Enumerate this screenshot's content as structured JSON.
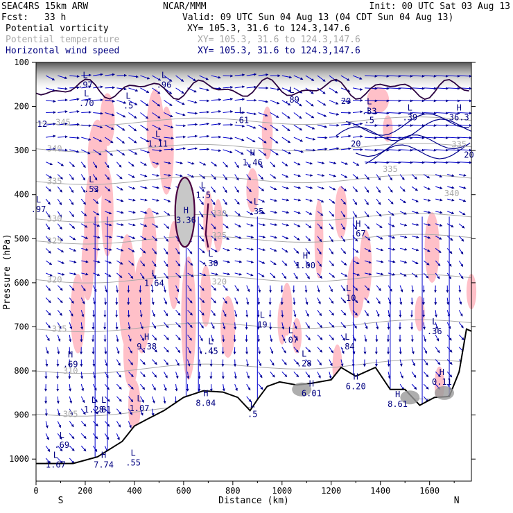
{
  "header": {
    "model": "SEAC4RS 15km ARW",
    "center": "NCAR/MMM",
    "init": "Init: 00 UTC Sat 03 Aug 13",
    "fcst_label": "Fcst:",
    "fcst_value": "33 h",
    "valid": "Valid: 09 UTC Sun 04 Aug 13 (04 CDT Sun 04 Aug 13)"
  },
  "fields": [
    {
      "name": "Potential vorticity",
      "xy": "XY= 105.3, 31.6 to 124.3,147.6",
      "color": "#000000"
    },
    {
      "name": "Potential temperature",
      "xy": "XY= 105.3, 31.6 to 124.3,147.6",
      "color": "#a8a8a8"
    },
    {
      "name": "Horizontal wind speed",
      "xy": "XY= 105.3, 31.6 to 124.3,147.6",
      "color": "#000080"
    }
  ],
  "chart_data": {
    "type": "cross-section",
    "xlabel": "Distance (km)",
    "ylabel": "Pressure (hPa)",
    "x_ticks": [
      0,
      200,
      400,
      600,
      800,
      1000,
      1200,
      1400,
      1600
    ],
    "y_ticks": [
      100,
      200,
      300,
      400,
      500,
      600,
      700,
      800,
      900,
      1000
    ],
    "xlim": [
      0,
      1770
    ],
    "ylim": [
      1050,
      100
    ],
    "endpoints": {
      "left": "S",
      "right": "N"
    },
    "terrain_surface": [
      [
        0,
        1010
      ],
      [
        150,
        1010
      ],
      [
        250,
        995
      ],
      [
        350,
        960
      ],
      [
        400,
        925
      ],
      [
        450,
        910
      ],
      [
        520,
        890
      ],
      [
        600,
        860
      ],
      [
        680,
        845
      ],
      [
        760,
        848
      ],
      [
        820,
        860
      ],
      [
        870,
        890
      ],
      [
        900,
        865
      ],
      [
        940,
        835
      ],
      [
        990,
        825
      ],
      [
        1060,
        832
      ],
      [
        1120,
        828
      ],
      [
        1200,
        820
      ],
      [
        1240,
        792
      ],
      [
        1300,
        812
      ],
      [
        1380,
        792
      ],
      [
        1440,
        842
      ],
      [
        1500,
        842
      ],
      [
        1560,
        878
      ],
      [
        1620,
        860
      ],
      [
        1680,
        858
      ],
      [
        1720,
        802
      ],
      [
        1750,
        705
      ],
      [
        1770,
        710
      ]
    ],
    "theta_contours": [
      {
        "label": "305",
        "x": 140,
        "p": 898
      },
      {
        "label": "310",
        "x": 140,
        "p": 800
      },
      {
        "label": "315",
        "x": 95,
        "p": 705
      },
      {
        "label": "320",
        "x": 75,
        "p": 593
      },
      {
        "label": "325",
        "x": 75,
        "p": 505
      },
      {
        "label": "330",
        "x": 75,
        "p": 455
      },
      {
        "label": "335",
        "x": 75,
        "p": 370
      },
      {
        "label": "340",
        "x": 75,
        "p": 296
      },
      {
        "label": "345",
        "x": 110,
        "p": 236
      },
      {
        "label": "320",
        "x": 745,
        "p": 598
      },
      {
        "label": "325",
        "x": 745,
        "p": 493
      },
      {
        "label": "330",
        "x": 745,
        "p": 443
      },
      {
        "label": "335",
        "x": 1440,
        "p": 342
      },
      {
        "label": "340",
        "x": 1690,
        "p": 397
      },
      {
        "label": "335",
        "x": 1720,
        "p": 286
      }
    ],
    "pv_extrema": [
      {
        "type": "H",
        "value": "3.36",
        "x": 610,
        "p": 455
      },
      {
        "type": "L",
        "value": ".53",
        "x": 225,
        "p": 385
      },
      {
        "type": "L",
        "value": ".97",
        "x": 10,
        "p": 430
      },
      {
        "type": "L",
        "value": "1.11",
        "x": 495,
        "p": 282
      },
      {
        "type": "H",
        "value": "1.46",
        "x": 880,
        "p": 324
      },
      {
        "type": "L",
        "value": ".61",
        "x": 835,
        "p": 228
      },
      {
        "type": "L",
        "value": ".35",
        "x": 895,
        "p": 435
      },
      {
        "type": "L",
        "value": "1.5",
        "x": 680,
        "p": 398
      },
      {
        "type": "L",
        "value": ".30",
        "x": 710,
        "p": 553
      },
      {
        "type": "H",
        "value": "1.00",
        "x": 1095,
        "p": 558
      },
      {
        "type": "H",
        "value": ".67",
        "x": 1310,
        "p": 485
      },
      {
        "type": "L",
        "value": "1.64",
        "x": 480,
        "p": 598
      },
      {
        "type": "L",
        "value": ".10",
        "x": 1270,
        "p": 632
      },
      {
        "type": "L",
        "value": "19",
        "x": 920,
        "p": 692
      },
      {
        "type": "L",
        "value": ".07",
        "x": 1035,
        "p": 727
      },
      {
        "type": "L",
        "value": ".28",
        "x": 1090,
        "p": 780
      },
      {
        "type": "L",
        "value": ".84",
        "x": 1265,
        "p": 742
      },
      {
        "type": "L",
        "value": ".36",
        "x": 1620,
        "p": 707
      },
      {
        "type": "H",
        "value": "9.38",
        "x": 450,
        "p": 742
      },
      {
        "type": "L",
        "value": ".45",
        "x": 710,
        "p": 752
      },
      {
        "type": "H",
        "value": ".69",
        "x": 140,
        "p": 782
      },
      {
        "type": "L",
        "value": "1.28",
        "x": 235,
        "p": 885
      },
      {
        "type": "L",
        "value": ".81",
        "x": 275,
        "p": 885
      },
      {
        "type": "L",
        "value": "1.07",
        "x": 420,
        "p": 882
      },
      {
        "type": "H",
        "value": "8.04",
        "x": 690,
        "p": 870
      },
      {
        "type": "H",
        "value": "6.01",
        "x": 1120,
        "p": 848
      },
      {
        "type": "H",
        "value": "6.20",
        "x": 1300,
        "p": 832
      },
      {
        "type": "H",
        "value": "8.61",
        "x": 1470,
        "p": 872
      },
      {
        "type": "H",
        "value": "0.11",
        "x": 1650,
        "p": 822
      },
      {
        "type": "L",
        "value": ".69",
        "x": 105,
        "p": 965
      },
      {
        "type": "L",
        "value": "1.67",
        "x": 80,
        "p": 1010
      },
      {
        "type": "H",
        "value": "7.74",
        "x": 275,
        "p": 1010
      },
      {
        "type": "L",
        "value": ".55",
        "x": 395,
        "p": 1005
      },
      {
        "type": "L",
        "value": ".5",
        "x": 880,
        "p": 895
      },
      {
        "type": "L",
        "value": ".70",
        "x": 205,
        "p": 190
      },
      {
        "type": "L",
        "value": ".5",
        "x": 375,
        "p": 195
      },
      {
        "type": "L",
        "value": ".89",
        "x": 1040,
        "p": 182
      },
      {
        "type": "L",
        "value": ".33",
        "x": 1355,
        "p": 208
      },
      {
        "type": "L",
        "value": ".39",
        "x": 1520,
        "p": 222
      },
      {
        "type": "H",
        "value": "36.3",
        "x": 1720,
        "p": 222
      },
      {
        "type": "L",
        "value": ".97",
        "x": 200,
        "p": 148
      },
      {
        "type": "L",
        "value": ".96",
        "x": 520,
        "p": 148
      },
      {
        "type": "L",
        "value": ".5",
        "x": 1355,
        "p": 228
      }
    ],
    "wind_labels": [
      {
        "label": "20",
        "x": 1260,
        "p": 188
      },
      {
        "label": "20",
        "x": 1300,
        "p": 285
      },
      {
        "label": "20",
        "x": 1760,
        "p": 310
      },
      {
        "label": "12",
        "x": 25,
        "p": 240
      }
    ]
  }
}
